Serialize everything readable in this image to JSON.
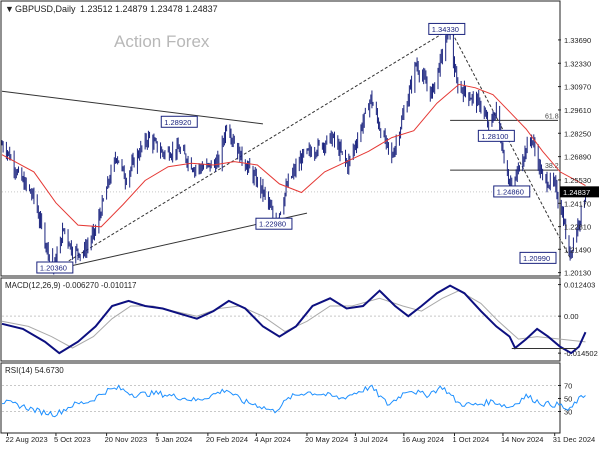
{
  "header": {
    "symbol": "GBPUSD,Daily",
    "ohlc": "1.23512 1.24879 1.23478 1.24837"
  },
  "watermark": "Action Forex",
  "colors": {
    "background": "#ffffff",
    "candle": "#1a237e",
    "ma": "#e53935",
    "macd_line": "#0d1080",
    "macd_signal": "#aaaaaa",
    "rsi": "#1e90ff",
    "trendline": "#333333",
    "grid": "#c8c8c8",
    "label_border": "#1a237e",
    "price_tag_bg": "#000000"
  },
  "chart_data": [
    {
      "type": "candlestick",
      "panel": "price",
      "ylim": [
        1.2005,
        1.352
      ],
      "y_ticks": [
        "1.33690",
        "1.32330",
        "1.30970",
        "1.29610",
        "1.28250",
        "1.26890",
        "1.25530",
        "1.24170",
        "1.22810",
        "1.21490",
        "1.20130"
      ],
      "x_ticks": [
        "22 Aug 2023",
        "5 Oct 2023",
        "20 Nov 2023",
        "5 Jan 2024",
        "20 Feb 2024",
        "4 Apr 2024",
        "20 May 2024",
        "3 Jul 2024",
        "16 Aug 2024",
        "1 Oct 2024",
        "14 Nov 2024",
        "31 Dec 2024"
      ],
      "x_range": [
        "2023-08-17",
        "2025-01-03"
      ],
      "last_price": "1.24837",
      "series": [
        {
          "name": "GBPUSD",
          "close_path": [
            [
              "2023-08-17",
              1.276
            ],
            [
              "2023-08-22",
              1.272
            ],
            [
              "2023-09-01",
              1.258
            ],
            [
              "2023-09-15",
              1.245
            ],
            [
              "2023-09-25",
              1.22
            ],
            [
              "2023-10-03",
              1.204
            ],
            [
              "2023-10-12",
              1.227
            ],
            [
              "2023-10-20",
              1.214
            ],
            [
              "2023-10-30",
              1.213
            ],
            [
              "2023-11-10",
              1.226
            ],
            [
              "2023-11-20",
              1.25
            ],
            [
              "2023-11-29",
              1.27
            ],
            [
              "2023-12-07",
              1.256
            ],
            [
              "2023-12-20",
              1.272
            ],
            [
              "2023-12-28",
              1.28
            ],
            [
              "2024-01-10",
              1.271
            ],
            [
              "2024-01-25",
              1.273
            ],
            [
              "2024-02-08",
              1.262
            ],
            [
              "2024-02-20",
              1.263
            ],
            [
              "2024-03-01",
              1.266
            ],
            [
              "2024-03-08",
              1.288
            ],
            [
              "2024-03-20",
              1.27
            ],
            [
              "2024-04-01",
              1.258
            ],
            [
              "2024-04-12",
              1.246
            ],
            [
              "2024-04-22",
              1.23
            ],
            [
              "2024-05-03",
              1.254
            ],
            [
              "2024-05-16",
              1.269
            ],
            [
              "2024-05-29",
              1.274
            ],
            [
              "2024-06-12",
              1.28
            ],
            [
              "2024-06-26",
              1.264
            ],
            [
              "2024-07-05",
              1.28
            ],
            [
              "2024-07-17",
              1.303
            ],
            [
              "2024-07-26",
              1.284
            ],
            [
              "2024-08-05",
              1.268
            ],
            [
              "2024-08-20",
              1.304
            ],
            [
              "2024-08-27",
              1.323
            ],
            [
              "2024-09-10",
              1.305
            ],
            [
              "2024-09-26",
              1.343
            ],
            [
              "2024-10-03",
              1.311
            ],
            [
              "2024-10-15",
              1.304
            ],
            [
              "2024-10-25",
              1.299
            ],
            [
              "2024-11-01",
              1.286
            ],
            [
              "2024-11-08",
              1.296
            ],
            [
              "2024-11-15",
              1.268
            ],
            [
              "2024-11-22",
              1.249
            ],
            [
              "2024-12-01",
              1.268
            ],
            [
              "2024-12-10",
              1.28
            ],
            [
              "2024-12-20",
              1.256
            ],
            [
              "2024-12-31",
              1.252
            ],
            [
              "2025-01-08",
              1.233
            ],
            [
              "2025-01-13",
              1.21
            ],
            [
              "2025-01-17",
              1.22
            ],
            [
              "2025-01-23",
              1.234
            ],
            [
              "2025-01-28",
              1.2484
            ]
          ]
        },
        {
          "name": "moving average",
          "path": [
            [
              "2023-08-17",
              1.27
            ],
            [
              "2023-09-15",
              1.26
            ],
            [
              "2023-10-05",
              1.242
            ],
            [
              "2023-10-25",
              1.229
            ],
            [
              "2023-11-15",
              1.228
            ],
            [
              "2023-12-05",
              1.241
            ],
            [
              "2023-12-25",
              1.255
            ],
            [
              "2024-01-15",
              1.263
            ],
            [
              "2024-02-05",
              1.265
            ],
            [
              "2024-02-25",
              1.264
            ],
            [
              "2024-03-15",
              1.266
            ],
            [
              "2024-04-05",
              1.264
            ],
            [
              "2024-04-25",
              1.253
            ],
            [
              "2024-05-15",
              1.248
            ],
            [
              "2024-06-05",
              1.26
            ],
            [
              "2024-06-25",
              1.266
            ],
            [
              "2024-07-15",
              1.272
            ],
            [
              "2024-08-05",
              1.28
            ],
            [
              "2024-08-25",
              1.284
            ],
            [
              "2024-09-15",
              1.3
            ],
            [
              "2024-10-05",
              1.311
            ],
            [
              "2024-10-20",
              1.309
            ],
            [
              "2024-11-05",
              1.305
            ],
            [
              "2024-11-20",
              1.295
            ],
            [
              "2024-12-05",
              1.285
            ],
            [
              "2024-12-20",
              1.272
            ],
            [
              "2025-01-05",
              1.26
            ],
            [
              "2025-01-28",
              1.252
            ]
          ]
        }
      ],
      "trendlines": [
        {
          "style": "solid",
          "from": [
            "2023-08-17",
            1.307
          ],
          "to": [
            "2024-04-10",
            1.288
          ]
        },
        {
          "style": "solid",
          "from": [
            "2023-10-10",
            1.204
          ],
          "to": [
            "2024-05-20",
            1.236
          ]
        },
        {
          "style": "dashed",
          "from": [
            "2023-10-05",
            1.2036
          ],
          "to": [
            "2024-09-27",
            1.3433
          ]
        },
        {
          "style": "dashed",
          "from": [
            "2024-09-27",
            1.3433
          ],
          "to": [
            "2025-01-14",
            1.2099
          ]
        }
      ],
      "fib_levels": [
        {
          "label": "61.8",
          "value": 1.29,
          "from": "2024-09-27"
        },
        {
          "label": "38.2",
          "value": 1.261,
          "from": "2024-09-27"
        }
      ],
      "annotations": [
        {
          "text": "1.20360",
          "date": "2023-10-04",
          "value": 1.2036
        },
        {
          "text": "1.28920",
          "date": "2024-01-25",
          "value": 1.2892
        },
        {
          "text": "1.22980",
          "date": "2024-04-20",
          "value": 1.2298
        },
        {
          "text": "1.34330",
          "date": "2024-09-24",
          "value": 1.3433
        },
        {
          "text": "1.28100",
          "date": "2024-11-08",
          "value": 1.281
        },
        {
          "text": "1.24860",
          "date": "2024-11-22",
          "value": 1.2486
        },
        {
          "text": "1.20990",
          "date": "2025-01-13",
          "value": 1.2099
        }
      ]
    },
    {
      "type": "line",
      "panel": "macd",
      "title": "MACD(12,26,9) -0.006270 -0.010117",
      "ylim": [
        -0.0168,
        0.0138
      ],
      "y_ticks": [
        "0.012403",
        "0.00",
        "-0.014502"
      ],
      "series": [
        {
          "name": "MACD",
          "path": [
            [
              "2023-08-17",
              -0.003
            ],
            [
              "2023-09-05",
              -0.005
            ],
            [
              "2023-09-25",
              -0.01
            ],
            [
              "2023-10-08",
              -0.0145
            ],
            [
              "2023-10-25",
              -0.01
            ],
            [
              "2023-11-10",
              -0.004
            ],
            [
              "2023-11-25",
              0.004
            ],
            [
              "2023-12-10",
              0.006
            ],
            [
              "2023-12-25",
              0.004
            ],
            [
              "2024-01-10",
              0.003
            ],
            [
              "2024-01-25",
              0.001
            ],
            [
              "2024-02-10",
              -0.001
            ],
            [
              "2024-02-25",
              0.002
            ],
            [
              "2024-03-10",
              0.006
            ],
            [
              "2024-03-25",
              0.003
            ],
            [
              "2024-04-10",
              -0.004
            ],
            [
              "2024-04-25",
              -0.008
            ],
            [
              "2024-05-10",
              -0.004
            ],
            [
              "2024-05-25",
              0.004
            ],
            [
              "2024-06-10",
              0.007
            ],
            [
              "2024-06-25",
              0.003
            ],
            [
              "2024-07-10",
              0.004
            ],
            [
              "2024-07-25",
              0.01
            ],
            [
              "2024-08-08",
              0.004
            ],
            [
              "2024-08-20",
              0.0
            ],
            [
              "2024-09-01",
              0.004
            ],
            [
              "2024-09-15",
              0.009
            ],
            [
              "2024-09-27",
              0.012
            ],
            [
              "2024-10-10",
              0.009
            ],
            [
              "2024-10-25",
              0.002
            ],
            [
              "2024-11-08",
              -0.004
            ],
            [
              "2024-11-20",
              -0.008
            ],
            [
              "2024-11-25",
              -0.0125
            ],
            [
              "2024-12-05",
              -0.009
            ],
            [
              "2024-12-15",
              -0.005
            ],
            [
              "2024-12-25",
              -0.008
            ],
            [
              "2025-01-05",
              -0.012
            ],
            [
              "2025-01-15",
              -0.0145
            ],
            [
              "2025-01-22",
              -0.012
            ],
            [
              "2025-01-28",
              -0.0063
            ]
          ]
        },
        {
          "name": "Signal",
          "path": [
            [
              "2023-08-17",
              -0.002
            ],
            [
              "2023-09-10",
              -0.004
            ],
            [
              "2023-10-01",
              -0.008
            ],
            [
              "2023-10-20",
              -0.0125
            ],
            [
              "2023-11-08",
              -0.008
            ],
            [
              "2023-11-25",
              -0.001
            ],
            [
              "2023-12-12",
              0.004
            ],
            [
              "2024-01-01",
              0.004
            ],
            [
              "2024-01-20",
              0.002
            ],
            [
              "2024-02-10",
              0.0
            ],
            [
              "2024-03-01",
              0.003
            ],
            [
              "2024-03-20",
              0.004
            ],
            [
              "2024-04-10",
              0.0
            ],
            [
              "2024-04-30",
              -0.006
            ],
            [
              "2024-05-20",
              -0.002
            ],
            [
              "2024-06-10",
              0.004
            ],
            [
              "2024-06-30",
              0.004
            ],
            [
              "2024-07-25",
              0.007
            ],
            [
              "2024-08-15",
              0.004
            ],
            [
              "2024-09-01",
              0.002
            ],
            [
              "2024-09-20",
              0.007
            ],
            [
              "2024-10-05",
              0.01
            ],
            [
              "2024-10-25",
              0.005
            ],
            [
              "2024-11-10",
              -0.002
            ],
            [
              "2024-11-28",
              -0.009
            ],
            [
              "2024-12-15",
              -0.008
            ],
            [
              "2025-01-05",
              -0.009
            ],
            [
              "2025-01-28",
              -0.0101
            ]
          ]
        }
      ]
    },
    {
      "type": "line",
      "panel": "rsi",
      "title": "RSI(14) 54.6730",
      "ylim": [
        0,
        100
      ],
      "y_ticks": [
        "70",
        "50",
        "30"
      ],
      "reference_levels": [
        70,
        30
      ],
      "series": [
        {
          "name": "RSI",
          "path": [
            [
              "2023-08-17",
              45
            ],
            [
              "2023-09-05",
              38
            ],
            [
              "2023-09-20",
              30
            ],
            [
              "2023-10-05",
              26
            ],
            [
              "2023-10-20",
              40
            ],
            [
              "2023-11-05",
              46
            ],
            [
              "2023-11-20",
              62
            ],
            [
              "2023-12-01",
              66
            ],
            [
              "2023-12-15",
              56
            ],
            [
              "2024-01-05",
              58
            ],
            [
              "2024-01-25",
              52
            ],
            [
              "2024-02-10",
              47
            ],
            [
              "2024-02-25",
              56
            ],
            [
              "2024-03-08",
              64
            ],
            [
              "2024-03-22",
              46
            ],
            [
              "2024-04-05",
              40
            ],
            [
              "2024-04-20",
              30
            ],
            [
              "2024-05-05",
              52
            ],
            [
              "2024-05-20",
              60
            ],
            [
              "2024-06-05",
              56
            ],
            [
              "2024-06-20",
              50
            ],
            [
              "2024-07-05",
              60
            ],
            [
              "2024-07-17",
              68
            ],
            [
              "2024-08-02",
              40
            ],
            [
              "2024-08-20",
              64
            ],
            [
              "2024-09-05",
              55
            ],
            [
              "2024-09-20",
              68
            ],
            [
              "2024-10-05",
              42
            ],
            [
              "2024-10-20",
              40
            ],
            [
              "2024-11-05",
              46
            ],
            [
              "2024-11-20",
              36
            ],
            [
              "2024-12-05",
              54
            ],
            [
              "2024-12-20",
              42
            ],
            [
              "2025-01-05",
              40
            ],
            [
              "2025-01-13",
              30
            ],
            [
              "2025-01-20",
              46
            ],
            [
              "2025-01-28",
              54.673
            ]
          ]
        }
      ]
    }
  ]
}
